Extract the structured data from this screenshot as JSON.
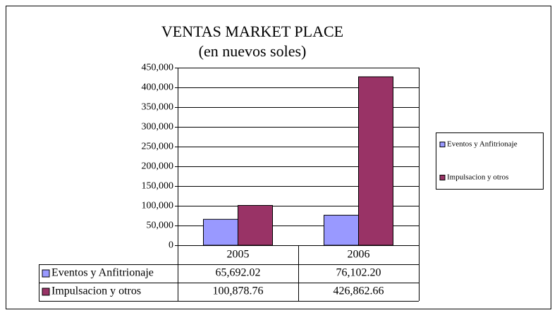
{
  "chart_data": {
    "type": "bar",
    "title": "VENTAS MARKET PLACE",
    "subtitle": "(en nuevos soles)",
    "categories": [
      "2005",
      "2006"
    ],
    "series": [
      {
        "name": "Eventos y Anfitrionaje",
        "color": "#9999ff",
        "values": [
          65692.02,
          76102.2
        ],
        "value_labels": [
          "65,692.02",
          "76,102.20"
        ]
      },
      {
        "name": "Impulsacion y otros",
        "color": "#993366",
        "values": [
          100878.76,
          426862.66
        ],
        "value_labels": [
          "100,878.76",
          "426,862.66"
        ]
      }
    ],
    "ylim": [
      0,
      450000
    ],
    "yticks": [
      0,
      {
        "value": 50000,
        "label": "50,000"
      },
      {
        "value": 100000,
        "label": "100,000"
      },
      {
        "value": 150000,
        "label": "150,000"
      },
      {
        "value": 200000,
        "label": "200,000"
      },
      {
        "value": 250000,
        "label": "250,000"
      },
      {
        "value": 300000,
        "label": "300,000"
      },
      {
        "value": 350000,
        "label": "350,000"
      },
      {
        "value": 400000,
        "label": "400,000"
      },
      {
        "value": 450000,
        "label": "450,000"
      }
    ],
    "grid": true,
    "legend": "right",
    "data_table": true
  }
}
